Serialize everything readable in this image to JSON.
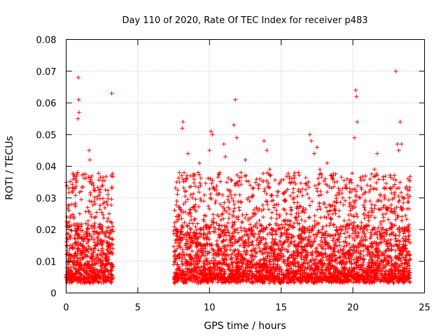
{
  "chart_data": {
    "type": "scatter",
    "title": "Day 110 of 2020, Rate Of TEC Index for receiver p483",
    "xlabel": "GPS time / hours",
    "ylabel": "ROTI / TECUs",
    "xlim": [
      0,
      25
    ],
    "ylim": [
      0,
      0.08
    ],
    "xticks": [
      0,
      5,
      10,
      15,
      20,
      25
    ],
    "yticks": [
      0,
      0.01,
      0.02,
      0.03,
      0.04,
      0.05,
      0.06,
      0.07,
      0.08
    ],
    "xtick_labels": [
      "0",
      "5",
      "10",
      "15",
      "20",
      "25"
    ],
    "ytick_labels": [
      "0",
      "0.01",
      "0.02",
      "0.03",
      "0.04",
      "0.05",
      "0.06",
      "0.07",
      "0.08"
    ],
    "grid": true,
    "marker": "+",
    "color": "#ff0000",
    "series": [
      {
        "name": "ROTI",
        "points": [
          [
            0.05,
            0.015
          ],
          [
            0.1,
            0.022
          ],
          [
            0.15,
            0.009
          ],
          [
            0.2,
            0.026
          ],
          [
            0.25,
            0.012
          ],
          [
            0.3,
            0.018
          ],
          [
            0.35,
            0.007
          ],
          [
            0.4,
            0.028
          ],
          [
            0.45,
            0.014
          ],
          [
            0.5,
            0.011
          ],
          [
            0.55,
            0.024
          ],
          [
            0.6,
            0.033
          ],
          [
            0.65,
            0.016
          ],
          [
            0.7,
            0.009
          ],
          [
            0.75,
            0.02
          ],
          [
            0.8,
            0.038
          ],
          [
            0.82,
            0.055
          ],
          [
            0.85,
            0.068
          ],
          [
            0.88,
            0.061
          ],
          [
            0.9,
            0.057
          ],
          [
            0.95,
            0.025
          ],
          [
            1.0,
            0.013
          ],
          [
            1.05,
            0.021
          ],
          [
            1.1,
            0.017
          ],
          [
            1.2,
            0.011
          ],
          [
            1.3,
            0.008
          ],
          [
            1.4,
            0.019
          ],
          [
            1.5,
            0.027
          ],
          [
            1.6,
            0.045
          ],
          [
            1.65,
            0.042
          ],
          [
            1.7,
            0.031
          ],
          [
            1.75,
            0.024
          ],
          [
            1.8,
            0.017
          ],
          [
            1.85,
            0.012
          ],
          [
            1.9,
            0.034
          ],
          [
            1.95,
            0.029
          ],
          [
            2.0,
            0.022
          ],
          [
            2.05,
            0.015
          ],
          [
            2.1,
            0.01
          ],
          [
            2.5,
            0.013
          ],
          [
            2.55,
            0.034
          ],
          [
            2.6,
            0.009
          ],
          [
            2.65,
            0.006
          ],
          [
            2.7,
            0.004
          ],
          [
            2.8,
            0.011
          ],
          [
            2.85,
            0.016
          ],
          [
            2.9,
            0.007
          ],
          [
            3.0,
            0.025
          ],
          [
            3.05,
            0.019
          ],
          [
            3.1,
            0.013
          ],
          [
            3.15,
            0.037
          ],
          [
            3.18,
            0.063
          ],
          [
            3.2,
            0.009
          ],
          [
            3.25,
            0.021
          ],
          [
            7.6,
            0.012
          ],
          [
            7.7,
            0.018
          ],
          [
            7.8,
            0.024
          ],
          [
            7.9,
            0.035
          ],
          [
            8.0,
            0.02
          ],
          [
            8.1,
            0.052
          ],
          [
            8.15,
            0.054
          ],
          [
            8.2,
            0.028
          ],
          [
            8.3,
            0.015
          ],
          [
            8.4,
            0.036
          ],
          [
            8.5,
            0.044
          ],
          [
            8.6,
            0.022
          ],
          [
            8.7,
            0.031
          ],
          [
            8.8,
            0.016
          ],
          [
            9.0,
            0.012
          ],
          [
            9.2,
            0.038
          ],
          [
            9.3,
            0.041
          ],
          [
            9.4,
            0.02
          ],
          [
            9.6,
            0.029
          ],
          [
            9.8,
            0.017
          ],
          [
            10.0,
            0.045
          ],
          [
            10.1,
            0.051
          ],
          [
            10.2,
            0.05
          ],
          [
            10.3,
            0.033
          ],
          [
            10.5,
            0.022
          ],
          [
            10.7,
            0.018
          ],
          [
            11.0,
            0.047
          ],
          [
            11.1,
            0.043
          ],
          [
            11.3,
            0.027
          ],
          [
            11.5,
            0.031
          ],
          [
            11.7,
            0.053
          ],
          [
            11.8,
            0.061
          ],
          [
            11.9,
            0.049
          ],
          [
            12.0,
            0.024
          ],
          [
            12.2,
            0.038
          ],
          [
            12.5,
            0.042
          ],
          [
            12.8,
            0.029
          ],
          [
            13.0,
            0.033
          ],
          [
            13.2,
            0.021
          ],
          [
            13.5,
            0.036
          ],
          [
            13.8,
            0.048
          ],
          [
            14.0,
            0.045
          ],
          [
            14.2,
            0.039
          ],
          [
            14.5,
            0.027
          ],
          [
            14.8,
            0.032
          ],
          [
            15.0,
            0.019
          ],
          [
            15.3,
            0.023
          ],
          [
            15.6,
            0.035
          ],
          [
            15.9,
            0.03
          ],
          [
            16.2,
            0.038
          ],
          [
            16.5,
            0.026
          ],
          [
            16.8,
            0.034
          ],
          [
            17.0,
            0.05
          ],
          [
            17.1,
            0.048
          ],
          [
            17.3,
            0.044
          ],
          [
            17.5,
            0.046
          ],
          [
            17.7,
            0.039
          ],
          [
            18.0,
            0.028
          ],
          [
            18.2,
            0.041
          ],
          [
            18.5,
            0.037
          ],
          [
            18.8,
            0.025
          ],
          [
            19.0,
            0.033
          ],
          [
            19.3,
            0.03
          ],
          [
            19.6,
            0.036
          ],
          [
            19.9,
            0.022
          ],
          [
            20.1,
            0.049
          ],
          [
            20.2,
            0.064
          ],
          [
            20.25,
            0.062
          ],
          [
            20.3,
            0.054
          ],
          [
            20.5,
            0.03
          ],
          [
            20.8,
            0.027
          ],
          [
            21.0,
            0.034
          ],
          [
            21.2,
            0.029
          ],
          [
            21.5,
            0.039
          ],
          [
            21.7,
            0.044
          ],
          [
            22.0,
            0.02
          ],
          [
            22.3,
            0.025
          ],
          [
            22.6,
            0.033
          ],
          [
            22.9,
            0.031
          ],
          [
            23.0,
            0.07
          ],
          [
            23.1,
            0.047
          ],
          [
            23.2,
            0.045
          ],
          [
            23.3,
            0.054
          ],
          [
            23.4,
            0.047
          ],
          [
            23.6,
            0.03
          ],
          [
            23.8,
            0.02
          ],
          [
            23.95,
            0.012
          ]
        ],
        "baseline_band": {
          "segments": [
            [
              0.0,
              3.3
            ],
            [
              7.5,
              24.0
            ]
          ],
          "typical_min": 0.003,
          "typical_max": 0.022
        }
      }
    ]
  }
}
